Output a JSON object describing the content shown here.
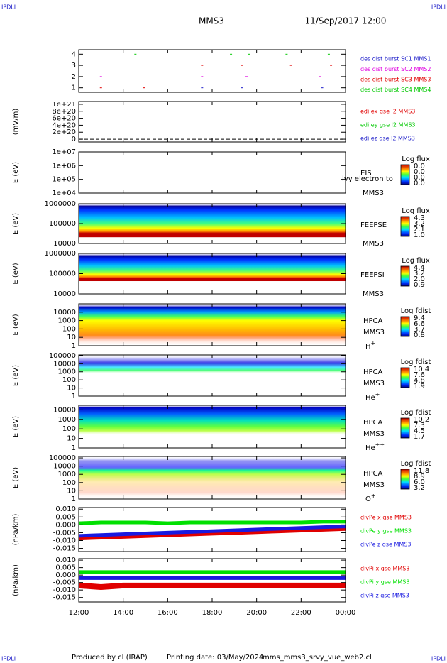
{
  "corner_labels": [
    "IPDLI",
    "IPDLI",
    "IPDLI",
    "IPDLI"
  ],
  "header": {
    "title": "MMS3",
    "date": "11/Sep/2017 12:00"
  },
  "footer": [
    "Produced by cl (IRAP)",
    "Printing date: 03/May/2024",
    "mms_mms3_srvy_vue_web2.cl"
  ],
  "x_axis": {
    "xlim": [
      0,
      12
    ],
    "xticks": [
      {
        "value": 0,
        "label": "12:00"
      },
      {
        "value": 2,
        "label": "14:00"
      },
      {
        "value": 4,
        "label": "16:00"
      },
      {
        "value": 6,
        "label": "18:00"
      },
      {
        "value": 8,
        "label": "20:00"
      },
      {
        "value": 10,
        "label": "22:00"
      },
      {
        "value": 12,
        "label": "00:00"
      }
    ]
  },
  "chart_data": [
    {
      "type": "event",
      "ylim": [
        0.6,
        4.4
      ],
      "yticks": [
        1,
        2,
        3,
        4
      ],
      "legend": [
        {
          "name": "des dist burst SC1 MMS1",
          "color": "#1a1ac8"
        },
        {
          "name": "des dist burst SC2 MMS2",
          "color": "#e000e0"
        },
        {
          "name": "des dist burst SC3 MMS3",
          "color": "#e00000"
        },
        {
          "name": "des dist burst SC4 MMS4",
          "color": "#00c800"
        }
      ]
    },
    {
      "type": "line",
      "ylabel": "(mV/m)",
      "ylim": [
        -8e+19,
        1.08e+21
      ],
      "yticks": [
        0,
        {
          "value": 2e+20,
          "label": "2e+20"
        },
        {
          "value": 4e+20,
          "label": "4e+20"
        },
        {
          "value": 6e+20,
          "label": "6e+20"
        },
        {
          "value": 8e+20,
          "label": "8e+20"
        },
        {
          "value": 1e+21,
          "label": "1e+21"
        }
      ],
      "legend": [
        {
          "name": "edi ex gse l2 MMS3",
          "color": "#e00000"
        },
        {
          "name": "edi ey gse l2 MMS3",
          "color": "#00c800"
        },
        {
          "name": "edi ez gse l2 MMS3",
          "color": "#1a1ac8"
        }
      ]
    },
    {
      "type": "spectrogram",
      "ylabel": "E (eV)",
      "log": true,
      "ylim": [
        10000,
        10000000
      ],
      "yticks": [
        {
          "value": 10000,
          "label": "1e+04"
        },
        {
          "value": 100000,
          "label": "1e+05"
        },
        {
          "value": 1000000,
          "label": "1e+06"
        },
        {
          "value": 10000000,
          "label": "1e+07"
        }
      ],
      "instrument": "EIS",
      "overlap_text": "lvy electron to",
      "spacecraft": "MMS3",
      "cbar_title": "Log flux",
      "cbar_labels": [
        "0.0",
        "0.0",
        "0.0",
        "0.0"
      ]
    },
    {
      "type": "spectrogram",
      "ylabel": "E (eV)",
      "log": true,
      "ylim": [
        10000,
        1000000
      ],
      "yticks": [
        10000,
        100000,
        1000000
      ],
      "instrument": "FEEPSE",
      "spacecraft": "MMS3",
      "cbar_title": "Log flux",
      "cbar_labels": [
        "4.3",
        "3.2",
        "2.1",
        "1.0"
      ]
    },
    {
      "type": "spectrogram",
      "ylabel": "E (eV)",
      "log": true,
      "ylim": [
        10000,
        1000000
      ],
      "yticks": [
        10000,
        100000,
        1000000
      ],
      "instrument": "FEEPSI",
      "spacecraft": "MMS3",
      "cbar_title": "Log flux",
      "cbar_labels": [
        "4.4",
        "3.2",
        "2.0",
        "0.9"
      ]
    },
    {
      "type": "spectrogram",
      "ylabel": "E (eV)",
      "log": true,
      "ylim": [
        1,
        100000
      ],
      "yticks": [
        1,
        10,
        100,
        1000,
        10000
      ],
      "instrument": "HPCA",
      "spacecraft": "MMS3",
      "species": "H",
      "charge": "+",
      "cbar_title": "Log fdist",
      "cbar_labels": [
        "9.4",
        "6.6",
        "3.7",
        "0.8"
      ]
    },
    {
      "type": "spectrogram",
      "ylabel": "E (eV)",
      "log": true,
      "ylim": [
        1,
        120000
      ],
      "yticks": [
        1,
        10,
        100,
        1000,
        10000,
        100000
      ],
      "instrument": "HPCA",
      "spacecraft": "MMS3",
      "species": "He",
      "charge": "+",
      "cbar_title": "Log fdist",
      "cbar_labels": [
        "10.4",
        "7.6",
        "4.8",
        "1.9"
      ]
    },
    {
      "type": "spectrogram",
      "ylabel": "E (eV)",
      "log": true,
      "ylim": [
        1,
        30000
      ],
      "yticks": [
        1,
        10,
        100,
        1000,
        10000
      ],
      "instrument": "HPCA",
      "spacecraft": "MMS3",
      "species": "He",
      "charge": "++",
      "cbar_title": "Log fdist",
      "cbar_labels": [
        "10.2",
        "7.3",
        "4.5",
        "1.7"
      ]
    },
    {
      "type": "spectrogram",
      "ylabel": "E (eV)",
      "log": true,
      "ylim": [
        1,
        150000
      ],
      "yticks": [
        1,
        10,
        100,
        1000,
        10000,
        100000
      ],
      "instrument": "HPCA",
      "spacecraft": "MMS3",
      "species": "O",
      "charge": "+",
      "cbar_title": "Log fdist",
      "cbar_labels": [
        "11.8",
        "8.9",
        "6.0",
        "3.2"
      ]
    },
    {
      "type": "line",
      "ylabel": "(nPa/km)",
      "ylim": [
        -0.017,
        0.011
      ],
      "yticks": [
        {
          "value": 0.01,
          "label": "0.010"
        },
        {
          "value": 0.005,
          "label": "0.005"
        },
        {
          "value": 0,
          "label": "0.000"
        },
        {
          "value": -0.005,
          "label": "-0.005"
        },
        {
          "value": -0.01,
          "label": "-0.010"
        },
        {
          "value": -0.015,
          "label": "-0.015"
        }
      ],
      "x": [
        0,
        1,
        2,
        3,
        4,
        5,
        6,
        7,
        8,
        9,
        10,
        11,
        12
      ],
      "series": [
        {
          "name": "divPe x gse MMS3",
          "color": "#e00000",
          "values": [
            -0.008,
            -0.0075,
            -0.007,
            -0.0065,
            -0.006,
            -0.0055,
            -0.005,
            -0.0045,
            -0.004,
            -0.0035,
            -0.003,
            -0.0025,
            -0.002
          ]
        },
        {
          "name": "divPe y gse MMS3",
          "color": "#00e000",
          "values": [
            0.001,
            0.0015,
            0.0015,
            0.0015,
            0.001,
            0.0015,
            0.0015,
            0.0015,
            0.0015,
            0.0015,
            0.0015,
            0.002,
            0.002
          ]
        },
        {
          "name": "divPe z gse MMS3",
          "color": "#1a1ae0",
          "values": [
            -0.007,
            -0.0065,
            -0.006,
            -0.0055,
            -0.005,
            -0.0045,
            -0.004,
            -0.0035,
            -0.003,
            -0.0025,
            -0.002,
            -0.0015,
            -0.001
          ]
        }
      ]
    },
    {
      "type": "line",
      "ylabel": "(nPa/km)",
      "ylim": [
        -0.018,
        0.011
      ],
      "yticks": [
        {
          "value": 0.01,
          "label": "0.010"
        },
        {
          "value": 0.005,
          "label": "0.005"
        },
        {
          "value": 0,
          "label": "0.000"
        },
        {
          "value": -0.005,
          "label": "-0.005"
        },
        {
          "value": -0.01,
          "label": "-0.010"
        },
        {
          "value": -0.015,
          "label": "-0.015"
        }
      ],
      "x": [
        0,
        1,
        2,
        3,
        4,
        5,
        6,
        7,
        8,
        9,
        10,
        11,
        12
      ],
      "series": [
        {
          "name": "divPi x gse MMS3",
          "color": "#e00000",
          "values": [
            -0.007,
            -0.008,
            -0.007,
            -0.007,
            -0.007,
            -0.007,
            -0.007,
            -0.007,
            -0.007,
            -0.007,
            -0.007,
            -0.007,
            -0.007
          ]
        },
        {
          "name": "divPi y gse MMS3",
          "color": "#00e000",
          "values": [
            0.002,
            0.002,
            0.002,
            0.002,
            0.002,
            0.002,
            0.002,
            0.002,
            0.002,
            0.002,
            0.002,
            0.002,
            0.002
          ]
        },
        {
          "name": "divPi z gse MMS3",
          "color": "#1a1ae0",
          "values": [
            -0.002,
            -0.002,
            -0.002,
            -0.002,
            -0.002,
            -0.002,
            -0.002,
            -0.002,
            -0.002,
            -0.002,
            -0.002,
            -0.002,
            -0.002
          ]
        }
      ]
    }
  ]
}
